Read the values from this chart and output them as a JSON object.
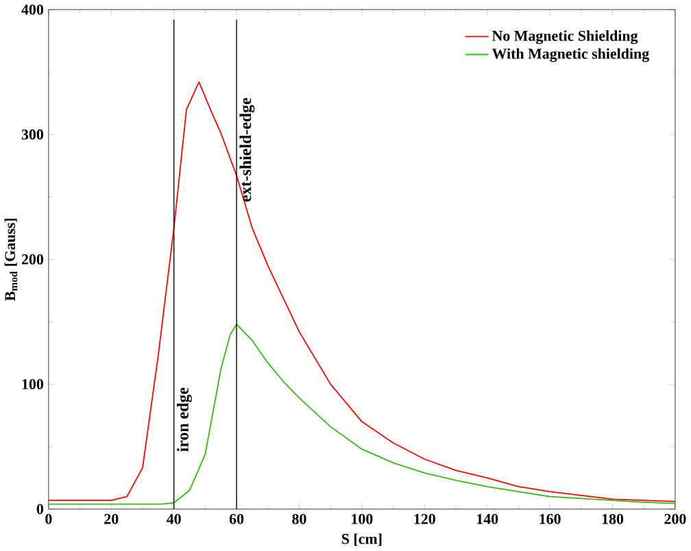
{
  "chart_data": {
    "type": "line",
    "xlabel": "S [cm]",
    "ylabel": "B$_{mod}$ [Gauss]",
    "xlim": [
      0,
      200
    ],
    "ylim": [
      0,
      400
    ],
    "xticks": [
      0,
      20,
      40,
      60,
      80,
      100,
      120,
      140,
      160,
      180,
      200
    ],
    "yticks": [
      0,
      100,
      200,
      300,
      400
    ],
    "grid": false,
    "legend": "top right",
    "ref_lines": [
      {
        "axis": "x",
        "value": 40,
        "label": "iron edge",
        "color": "#000000"
      },
      {
        "axis": "x",
        "value": 60,
        "label": "ext-shield-edge",
        "color": "#000000"
      }
    ],
    "series": [
      {
        "name": "No   Magnetic Shielding",
        "color": "#ff0000",
        "x": [
          0,
          10,
          20,
          25,
          30,
          35,
          40,
          44,
          48,
          52,
          55,
          60,
          65,
          70,
          80,
          90,
          100,
          110,
          120,
          130,
          140,
          150,
          160,
          170,
          180,
          190,
          200
        ],
        "values": [
          7,
          7,
          7,
          10,
          33,
          123,
          225,
          320,
          342,
          318,
          301,
          267,
          225,
          195,
          142,
          100,
          70,
          53,
          40,
          31,
          25,
          18,
          14,
          11,
          8,
          7,
          6
        ]
      },
      {
        "name": "With Magnetic shielding",
        "color": "#33bb11",
        "x": [
          0,
          10,
          20,
          30,
          36,
          40,
          45,
          50,
          55,
          58,
          60,
          65,
          70,
          75,
          80,
          90,
          100,
          110,
          120,
          130,
          140,
          150,
          160,
          170,
          180,
          190,
          200
        ],
        "values": [
          4,
          4,
          4,
          4,
          4,
          5,
          15,
          44,
          112,
          140,
          148,
          135,
          117,
          102,
          89,
          66,
          48,
          37,
          29,
          23,
          18,
          14,
          10,
          8.5,
          7,
          5.5,
          4.5
        ]
      }
    ]
  }
}
